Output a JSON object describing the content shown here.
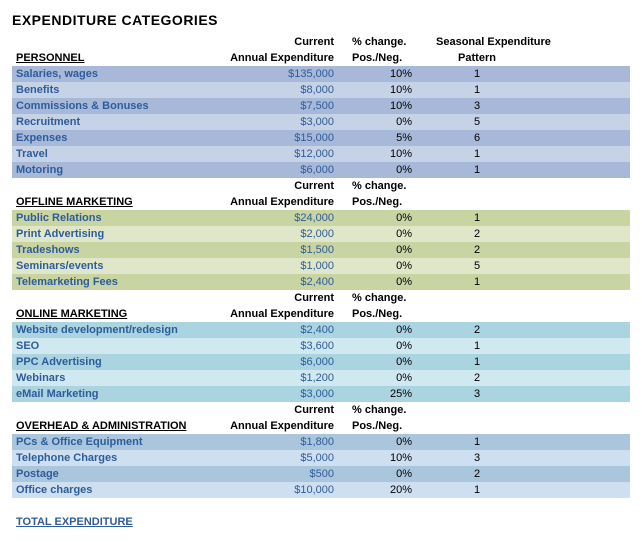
{
  "title": "EXPENDITURE CATEGORIES",
  "headers": {
    "current": "Current",
    "annual_expenditure": "Annual Expenditure",
    "pct_change": "% change.",
    "pos_neg": "Pos./Neg.",
    "seasonal": "Seasonal Expenditure",
    "pattern": "Pattern"
  },
  "colors": {
    "link_blue": "#2e5c9a",
    "personnel_alt": "#a7b8d9",
    "personnel_main": "#c6d2e6",
    "offline_alt": "#c9d4a3",
    "offline_main": "#e0e7c9",
    "online_alt": "#a9d4e0",
    "online_main": "#d0e8ef",
    "overhead_alt": "#a9c6dd",
    "overhead_main": "#cddff0"
  },
  "sections": [
    {
      "name": "PERSONNEL",
      "color_scheme": "personnel",
      "rows": [
        {
          "label": "Salaries, wages",
          "exp": "$135,000",
          "pct": "10%",
          "pat": "1"
        },
        {
          "label": "Benefits",
          "exp": "$8,000",
          "pct": "10%",
          "pat": "1"
        },
        {
          "label": "Commissions & Bonuses",
          "exp": "$7,500",
          "pct": "10%",
          "pat": "3"
        },
        {
          "label": "Recruitment",
          "exp": "$3,000",
          "pct": "0%",
          "pat": "5"
        },
        {
          "label": "Expenses",
          "exp": "$15,000",
          "pct": "5%",
          "pat": "6"
        },
        {
          "label": "Travel",
          "exp": "$12,000",
          "pct": "10%",
          "pat": "1"
        },
        {
          "label": "Motoring",
          "exp": "$6,000",
          "pct": "0%",
          "pat": "1"
        }
      ]
    },
    {
      "name": "OFFLINE MARKETING",
      "color_scheme": "offline",
      "rows": [
        {
          "label": "Public Relations",
          "exp": "$24,000",
          "pct": "0%",
          "pat": "1"
        },
        {
          "label": "Print Advertising",
          "exp": "$2,000",
          "pct": "0%",
          "pat": "2"
        },
        {
          "label": "Tradeshows",
          "exp": "$1,500",
          "pct": "0%",
          "pat": "2"
        },
        {
          "label": "Seminars/events",
          "exp": "$1,000",
          "pct": "0%",
          "pat": "5"
        },
        {
          "label": "Telemarketing Fees",
          "exp": "$2,400",
          "pct": "0%",
          "pat": "1"
        }
      ]
    },
    {
      "name": "ONLINE MARKETING",
      "color_scheme": "online",
      "rows": [
        {
          "label": "Website development/redesign",
          "exp": "$2,400",
          "pct": "0%",
          "pat": "2"
        },
        {
          "label": "SEO",
          "exp": "$3,600",
          "pct": "0%",
          "pat": "1"
        },
        {
          "label": "PPC Advertising",
          "exp": "$6,000",
          "pct": "0%",
          "pat": "1"
        },
        {
          "label": "Webinars",
          "exp": "$1,200",
          "pct": "0%",
          "pat": "2"
        },
        {
          "label": "eMail Marketing",
          "exp": "$3,000",
          "pct": "25%",
          "pat": "3"
        }
      ]
    },
    {
      "name": "OVERHEAD & ADMINISTRATION",
      "color_scheme": "overhead",
      "rows": [
        {
          "label": "PCs & Office Equipment",
          "exp": "$1,800",
          "pct": "0%",
          "pat": "1"
        },
        {
          "label": "Telephone Charges",
          "exp": "$5,000",
          "pct": "10%",
          "pat": "3"
        },
        {
          "label": "Postage",
          "exp": "$500",
          "pct": "0%",
          "pat": "2"
        },
        {
          "label": "Office charges",
          "exp": "$10,000",
          "pct": "20%",
          "pat": "1"
        }
      ]
    }
  ],
  "total_label": "TOTAL EXPENDITURE"
}
